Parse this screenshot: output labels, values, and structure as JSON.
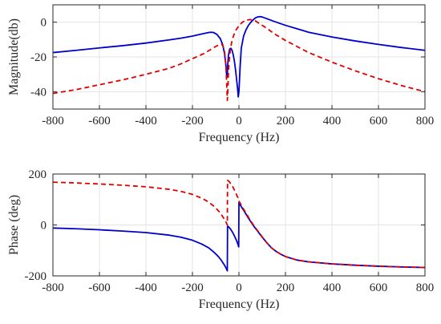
{
  "chart_data": [
    {
      "type": "line",
      "xlabel": "Frequency (Hz)",
      "ylabel": "Magnitude(db)",
      "xlim": [
        -800,
        800
      ],
      "ylim": [
        -50,
        10
      ],
      "xticks": [
        -800,
        -600,
        -400,
        -200,
        0,
        200,
        400,
        600,
        800
      ],
      "yticks": [
        0,
        -20,
        -40
      ],
      "grid": true,
      "legend": "none",
      "series": [
        {
          "color": "#0000cc",
          "style": "solid",
          "x": [
            -800,
            -700,
            -600,
            -500,
            -400,
            -300,
            -250,
            -200,
            -160,
            -140,
            -125,
            -110,
            -95,
            -80,
            -70,
            -62,
            -56,
            -52,
            -50,
            -48,
            -45,
            -40,
            -35,
            -30,
            -25,
            -20,
            -15,
            -10,
            -6,
            -3,
            0,
            5,
            10,
            20,
            30,
            40,
            50,
            60,
            70,
            80,
            90,
            100,
            120,
            150,
            200,
            250,
            300,
            400,
            500,
            600,
            700,
            800
          ],
          "y": [
            -17.5,
            -16.2,
            -14.8,
            -13.5,
            -12,
            -10.2,
            -9.2,
            -8,
            -6.8,
            -6.2,
            -5.8,
            -5.9,
            -7,
            -9.5,
            -13,
            -18,
            -25,
            -32,
            -30,
            -24,
            -19,
            -15.5,
            -15,
            -16,
            -18.5,
            -22,
            -27,
            -33,
            -38,
            -43,
            -40,
            -26,
            -15,
            -8,
            -4.5,
            -2,
            -0.2,
            1.2,
            2.4,
            3,
            3.2,
            3,
            2,
            0.5,
            -1.8,
            -3.8,
            -5.8,
            -8.5,
            -10.8,
            -12.8,
            -14.6,
            -16.2
          ]
        },
        {
          "color": "#e00000",
          "style": "dashed",
          "x": [
            -800,
            -700,
            -600,
            -500,
            -400,
            -300,
            -250,
            -200,
            -150,
            -120,
            -100,
            -85,
            -75,
            -68,
            -62,
            -58,
            -55,
            -53,
            -51,
            -50,
            -48,
            -45,
            -42,
            -38,
            -32,
            -25,
            -15,
            0,
            15,
            30,
            50,
            70,
            90,
            120,
            150,
            200,
            250,
            300,
            400,
            500,
            600,
            700,
            800
          ],
          "y": [
            -41,
            -38.8,
            -36,
            -33.2,
            -30,
            -26.5,
            -24,
            -21,
            -18,
            -15.6,
            -14,
            -13,
            -12.6,
            -13.8,
            -17,
            -22,
            -28,
            -35,
            -41,
            -45,
            -40,
            -29,
            -22,
            -17,
            -12,
            -8.5,
            -5,
            -2,
            0,
            1.2,
            1.5,
            0.8,
            -1,
            -3.5,
            -6.5,
            -10.5,
            -14,
            -17.5,
            -23,
            -28,
            -32.5,
            -36.5,
            -40
          ]
        }
      ]
    },
    {
      "type": "line",
      "xlabel": "Frequency (Hz)",
      "ylabel": "Phase (deg)",
      "xlim": [
        -800,
        800
      ],
      "ylim": [
        -200,
        200
      ],
      "xticks": [
        -800,
        -600,
        -400,
        -200,
        0,
        200,
        400,
        600,
        800
      ],
      "yticks": [
        200,
        0,
        -200
      ],
      "grid": true,
      "legend": "none",
      "series": [
        {
          "color": "#0000cc",
          "style": "solid",
          "x": [
            -800,
            -700,
            -600,
            -500,
            -400,
            -300,
            -250,
            -200,
            -160,
            -130,
            -110,
            -95,
            -85,
            -75,
            -68,
            -62,
            -58,
            -55,
            -52,
            -50,
            -49,
            -45,
            -40,
            -35,
            -30,
            -25,
            -20,
            -15,
            -10,
            -6,
            -3,
            -1,
            0,
            10,
            20,
            30,
            40,
            50,
            60,
            70,
            80,
            90,
            100,
            120,
            140,
            160,
            180,
            200,
            250,
            300,
            400,
            500,
            600,
            700,
            800
          ],
          "y": [
            -12,
            -15,
            -19,
            -24,
            -30,
            -40,
            -48,
            -60,
            -75,
            -90,
            -105,
            -118,
            -128,
            -140,
            -150,
            -158,
            -165,
            -170,
            -176,
            -180,
            -5,
            -7,
            -12,
            -18,
            -25,
            -33,
            -42,
            -52,
            -62,
            -72,
            -80,
            -86,
            88,
            72,
            58,
            43,
            28,
            14,
            0,
            -12,
            -24,
            -36,
            -48,
            -70,
            -90,
            -104,
            -115,
            -124,
            -138,
            -145,
            -153,
            -158,
            -162,
            -165,
            -167
          ]
        },
        {
          "color": "#e00000",
          "style": "dashed",
          "x": [
            -800,
            -700,
            -600,
            -500,
            -400,
            -300,
            -250,
            -200,
            -160,
            -130,
            -110,
            -95,
            -85,
            -75,
            -68,
            -62,
            -58,
            -55,
            -52,
            -50,
            -49,
            -45,
            -40,
            -35,
            -30,
            -25,
            -20,
            -15,
            -10,
            -5,
            0,
            10,
            20,
            30,
            40,
            50,
            60,
            70,
            80,
            90,
            100,
            120,
            140,
            160,
            180,
            200,
            250,
            300,
            400,
            500,
            600,
            700,
            800
          ],
          "y": [
            168,
            165,
            161,
            156,
            150,
            140,
            132,
            120,
            105,
            90,
            75,
            62,
            52,
            40,
            30,
            22,
            15,
            10,
            4,
            0,
            175,
            173,
            168,
            162,
            155,
            147,
            138,
            128,
            118,
            108,
            94,
            78,
            62,
            47,
            32,
            17,
            3,
            -10,
            -22,
            -34,
            -47,
            -70,
            -90,
            -104,
            -115,
            -124,
            -138,
            -145,
            -153,
            -158,
            -162,
            -165,
            -167
          ]
        }
      ]
    }
  ]
}
